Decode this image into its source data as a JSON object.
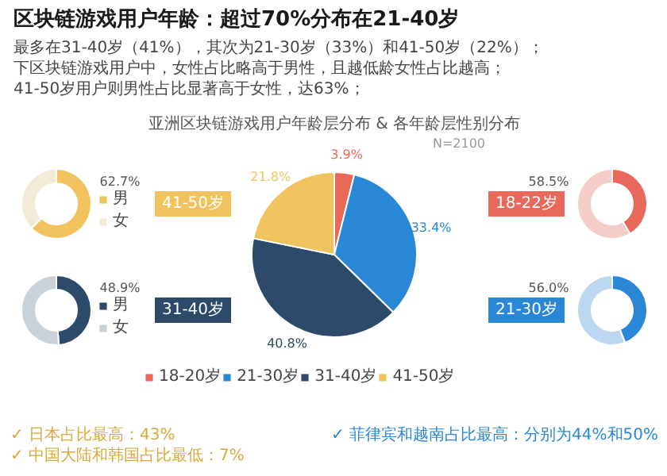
{
  "chart_data": [
    {
      "type": "pie",
      "title": "亚洲区块链游戏用户年龄层分布 & 各年龄层性别分布",
      "subtitle": "N=2100",
      "categories": [
        "18-20岁",
        "21-30岁",
        "31-40岁",
        "41-50岁"
      ],
      "values": [
        3.9,
        33.4,
        40.8,
        21.8
      ],
      "colors": [
        "#e8685a",
        "#2a87d6",
        "#2d4a6b",
        "#f0c35e"
      ],
      "value_labels": [
        "3.9%",
        "33.4%",
        "40.8%",
        "21.8%"
      ],
      "legend": "bottom",
      "annotations": [
        "区块链游戏用户年龄：超过70%分布在21-40岁",
        "最多在31-40岁（41%），其次为21-30岁（33%）和41-50岁（22%）；",
        "下区块链游戏用户中，女性占比略高于男性，且越低龄女性占比越高；",
        "41-50岁用户则男性占比显著高于女性，达63%；"
      ]
    },
    {
      "type": "donut",
      "title": "41-50岁",
      "categories": [
        "男",
        "女"
      ],
      "values": [
        62.7,
        37.3
      ],
      "colors": [
        "#f0c35e",
        "#f3ead8"
      ],
      "value_labels": [
        "62.7%",
        null
      ],
      "legend": "right",
      "annotations": [
        "✓ 日本占比最高：43%",
        "✓ 中国大陆和韩国占比最低：7%"
      ]
    },
    {
      "type": "donut",
      "title": "31-40岁",
      "categories": [
        "男",
        "女"
      ],
      "values": [
        48.9,
        51.1
      ],
      "colors": [
        "#2d4a6b",
        "#c9d1db"
      ],
      "value_labels": [
        "48.9%",
        null
      ],
      "legend": "right"
    },
    {
      "type": "donut",
      "title": "18-22岁",
      "categories": [
        null,
        null
      ],
      "values": [
        41.5,
        58.5
      ],
      "colors": [
        "#e8685a",
        "#f5cdc8"
      ],
      "value_labels": [
        null,
        "58.5%"
      ]
    },
    {
      "type": "donut",
      "title": "21-30岁",
      "categories": [
        null,
        null
      ],
      "values": [
        44.0,
        56.0
      ],
      "colors": [
        "#2a87d6",
        "#bcd8f1"
      ],
      "value_labels": [
        null,
        "56.0%"
      ],
      "annotations": [
        "✓ 菲律宾和越南占比最高：分别为44%和50%"
      ]
    }
  ]
}
